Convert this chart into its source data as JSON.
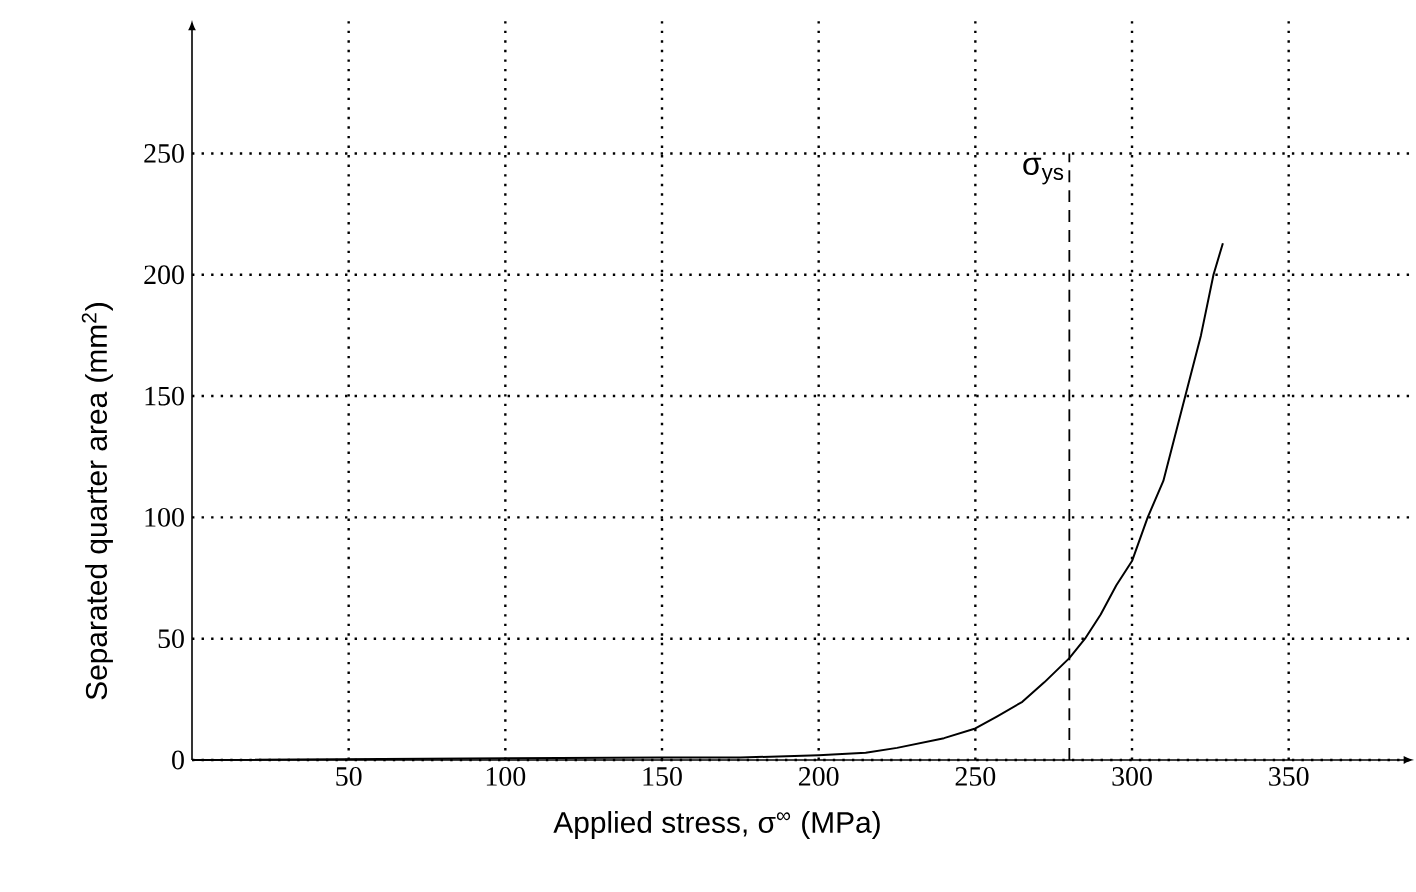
{
  "chart_data": {
    "type": "line",
    "xlabel": "Applied stress, σ$^{∞}$ (MPa)",
    "ylabel": "Separated quarter area (mm$^{2}$)",
    "x": [
      0,
      150,
      175,
      200,
      215,
      225,
      240,
      250,
      257,
      265,
      272,
      280,
      285,
      290,
      295,
      300,
      305,
      310,
      317,
      322,
      326,
      329
    ],
    "values": [
      0,
      1,
      1,
      2,
      3,
      5,
      9,
      13,
      18,
      24,
      32,
      42,
      50,
      60,
      72,
      82,
      100,
      115,
      150,
      175,
      200,
      213
    ],
    "color": "#000000",
    "line_style": "solid",
    "marker": "none",
    "grid": true,
    "xlim": [
      0,
      390
    ],
    "ylim": [
      0,
      305
    ],
    "xticks": [
      50,
      100,
      150,
      200,
      250,
      300,
      350
    ],
    "yticks": [
      0,
      50,
      100,
      150,
      200,
      250
    ],
    "ref_lines": [
      {
        "axis": "x",
        "value": 280,
        "label": "σ$_{ys}$",
        "color": "#000000",
        "line_style": "dashed"
      }
    ]
  }
}
